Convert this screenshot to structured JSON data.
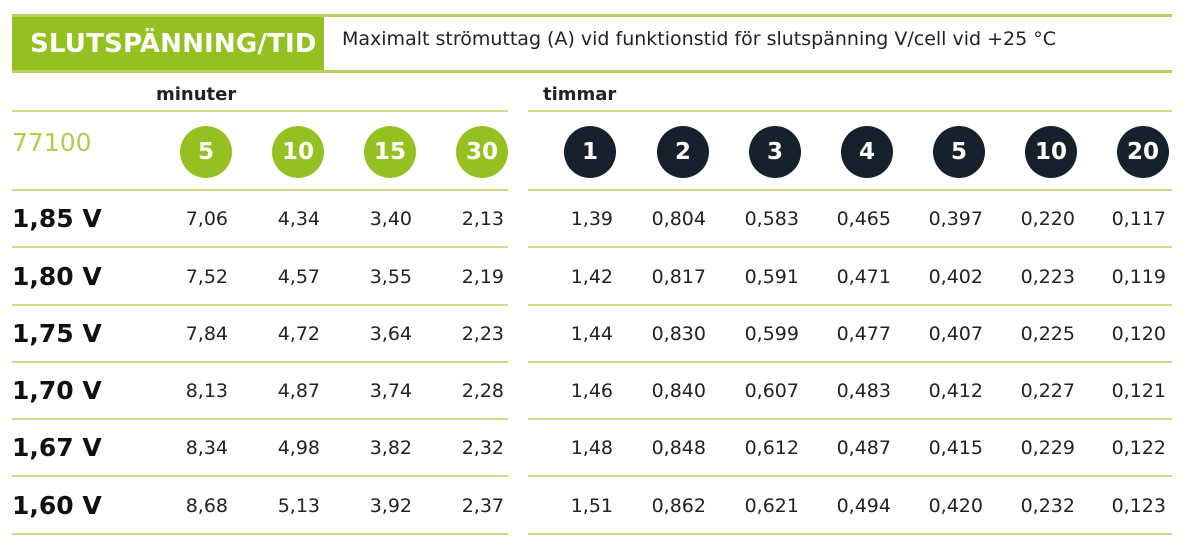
{
  "header": {
    "title": "SLUTSPÄNNING/TID",
    "description": "Maximalt strömuttag (A) vid funktionstid för slutspänning V/cell vid +25 °C"
  },
  "groups": {
    "minutes_label": "minuter",
    "hours_label": "timmar"
  },
  "model": "77100",
  "minute_columns": [
    "5",
    "10",
    "15",
    "30"
  ],
  "hour_columns": [
    "1",
    "2",
    "3",
    "4",
    "5",
    "10",
    "20"
  ],
  "colors": {
    "green": "#94c11f",
    "navy": "#15222e",
    "line": "#c9de85"
  },
  "rows": [
    {
      "voltage": "1,85 V",
      "values": [
        "7,06",
        "4,34",
        "3,40",
        "2,13",
        "1,39",
        "0,804",
        "0,583",
        "0,465",
        "0,397",
        "0,220",
        "0,117"
      ]
    },
    {
      "voltage": "1,80 V",
      "values": [
        "7,52",
        "4,57",
        "3,55",
        "2,19",
        "1,42",
        "0,817",
        "0,591",
        "0,471",
        "0,402",
        "0,223",
        "0,119"
      ]
    },
    {
      "voltage": "1,75 V",
      "values": [
        "7,84",
        "4,72",
        "3,64",
        "2,23",
        "1,44",
        "0,830",
        "0,599",
        "0,477",
        "0,407",
        "0,225",
        "0,120"
      ]
    },
    {
      "voltage": "1,70 V",
      "values": [
        "8,13",
        "4,87",
        "3,74",
        "2,28",
        "1,46",
        "0,840",
        "0,607",
        "0,483",
        "0,412",
        "0,227",
        "0,121"
      ]
    },
    {
      "voltage": "1,67 V",
      "values": [
        "8,34",
        "4,98",
        "3,82",
        "2,32",
        "1,48",
        "0,848",
        "0,612",
        "0,487",
        "0,415",
        "0,229",
        "0,122"
      ]
    },
    {
      "voltage": "1,60 V",
      "values": [
        "8,68",
        "5,13",
        "3,92",
        "2,37",
        "1,51",
        "0,862",
        "0,621",
        "0,494",
        "0,420",
        "0,232",
        "0,123"
      ]
    }
  ]
}
